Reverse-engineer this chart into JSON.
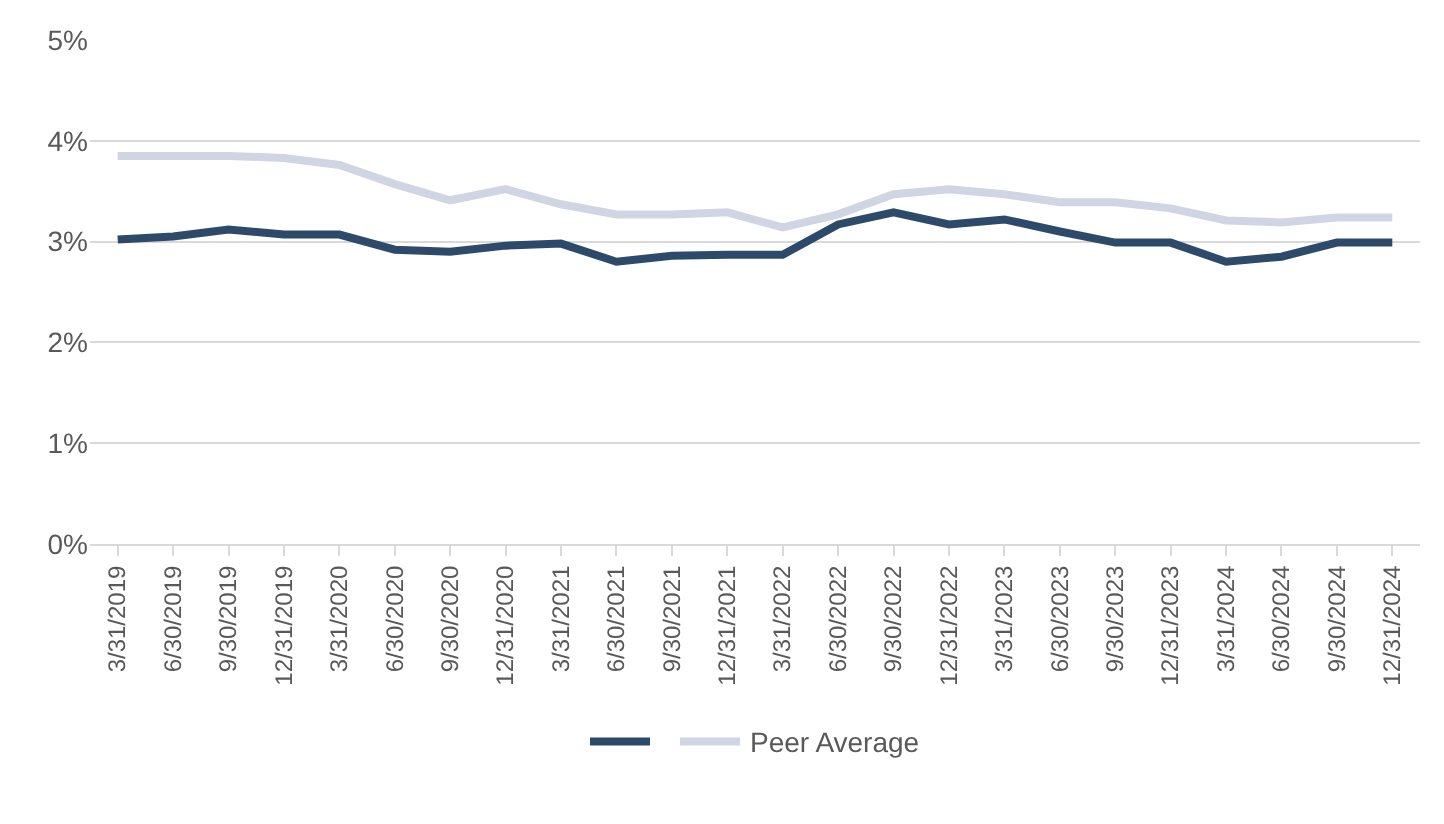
{
  "chart_data": {
    "type": "line",
    "categories": [
      "3/31/2019",
      "6/30/2019",
      "9/30/2019",
      "12/31/2019",
      "3/31/2020",
      "6/30/2020",
      "9/30/2020",
      "12/31/2020",
      "3/31/2021",
      "6/30/2021",
      "9/30/2021",
      "12/31/2021",
      "3/31/2022",
      "6/30/2022",
      "9/30/2022",
      "12/31/2022",
      "3/31/2023",
      "6/30/2023",
      "9/30/2023",
      "12/31/2023",
      "3/31/2024",
      "6/30/2024",
      "9/30/2024",
      "12/31/2024"
    ],
    "series": [
      {
        "color": "#2e4a6b",
        "values": [
          3.02,
          3.05,
          3.12,
          3.07,
          3.07,
          2.92,
          2.9,
          2.96,
          2.98,
          2.8,
          2.86,
          2.87,
          2.87,
          3.17,
          3.29,
          3.17,
          3.22,
          3.1,
          2.99,
          2.99,
          2.8,
          2.85,
          2.99,
          2.99
        ]
      },
      {
        "name": "Peer Average",
        "color": "#cfd5e3",
        "values": [
          3.85,
          3.85,
          3.85,
          3.83,
          3.76,
          3.57,
          3.41,
          3.52,
          3.37,
          3.27,
          3.27,
          3.29,
          3.14,
          3.27,
          3.47,
          3.52,
          3.47,
          3.39,
          3.39,
          3.33,
          3.21,
          3.19,
          3.24,
          3.24
        ]
      }
    ],
    "ylim": [
      0,
      5
    ],
    "yticks": [
      {
        "value": 0,
        "label": "0%"
      },
      {
        "value": 1,
        "label": "1%"
      },
      {
        "value": 2,
        "label": "2%"
      },
      {
        "value": 3,
        "label": "3%"
      },
      {
        "value": 4,
        "label": "4%"
      },
      {
        "value": 5,
        "label": "5%"
      }
    ],
    "grid": "y",
    "legend": "bottom",
    "marker": "none",
    "line_style": "solid"
  }
}
